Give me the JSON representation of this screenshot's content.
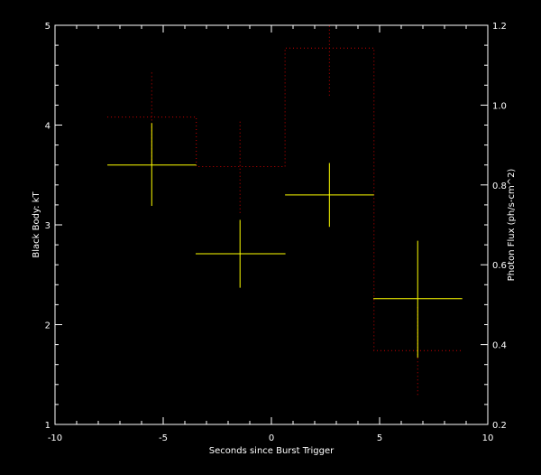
{
  "chart_data": {
    "type": "scatter",
    "xlabel": "Seconds since Burst Trigger",
    "ylabel": "Black Body: kT",
    "y2label": "Photon Flux (ph/s-cm^2)",
    "xlim": [
      -10,
      10
    ],
    "ylim": [
      1,
      5
    ],
    "y2lim": [
      0.2,
      1.2
    ],
    "xticks": [
      "-10",
      "-5",
      "0",
      "5",
      "10"
    ],
    "yticks": [
      "1",
      "2",
      "3",
      "4",
      "5"
    ],
    "y2ticks": [
      "0.2",
      "0.4",
      "0.6",
      "0.8",
      "1.0",
      "1.2"
    ],
    "grid": false,
    "colors": {
      "background": "#000000",
      "axes": "#ffffff",
      "kt": "#ffff00",
      "flux": "#cc0000"
    },
    "kt_points": [
      {
        "x": -5.53,
        "xmin": -7.58,
        "xmax": -3.47,
        "y": 3.6,
        "ylo": 3.19,
        "yhi": 4.02
      },
      {
        "x": -1.45,
        "xmin": -3.5,
        "xmax": 0.65,
        "y": 2.71,
        "ylo": 2.37,
        "yhi": 3.05
      },
      {
        "x": 2.68,
        "xmin": 0.63,
        "xmax": 4.74,
        "y": 3.3,
        "ylo": 2.98,
        "yhi": 3.62
      },
      {
        "x": 6.76,
        "xmin": 4.71,
        "xmax": 8.82,
        "y": 2.26,
        "ylo": 1.67,
        "yhi": 2.84
      }
    ],
    "flux_histogram": [
      {
        "xmin": -7.58,
        "xmax": -3.47,
        "x": -5.53,
        "y": 0.97,
        "ylo": 0.853,
        "yhi": 1.085
      },
      {
        "xmin": -3.47,
        "xmax": 0.63,
        "x": -1.45,
        "y": 0.846,
        "ylo": 0.73,
        "yhi": 0.963
      },
      {
        "xmin": 0.63,
        "xmax": 4.74,
        "x": 2.68,
        "y": 1.143,
        "ylo": 1.024,
        "yhi": 1.26
      },
      {
        "xmin": 4.74,
        "xmax": 8.82,
        "x": 6.76,
        "y": 0.385,
        "ylo": 0.274,
        "yhi": 0.496
      }
    ]
  }
}
